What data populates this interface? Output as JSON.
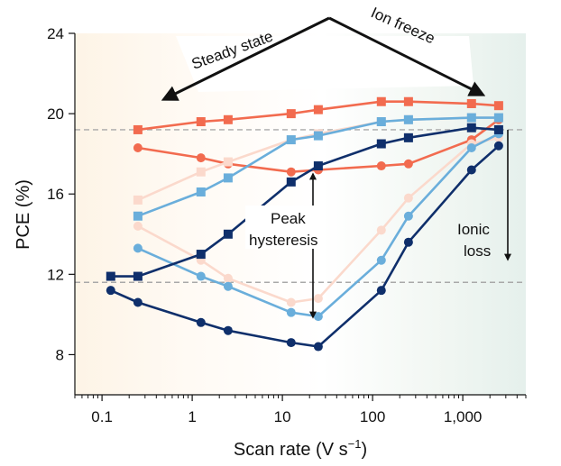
{
  "chart_data": {
    "type": "line",
    "xscale": "log",
    "xlim": [
      0.05,
      5000
    ],
    "ylim": [
      6,
      24
    ],
    "xlabel": "Scan rate (V s",
    "xlabel_sup": "−1",
    "xlabel_end": ")",
    "ylabel": "PCE (%)",
    "xticks": [
      0.1,
      1,
      10,
      100,
      1000
    ],
    "xtick_labels": [
      "0.1",
      "1",
      "10",
      "100",
      "1,000"
    ],
    "yticks": [
      8,
      12,
      16,
      20,
      24
    ],
    "ytick_labels": [
      "8",
      "12",
      "16",
      "20",
      "24"
    ],
    "reference_lines": [
      19.2,
      11.6
    ],
    "annotations": {
      "steady_state": "Steady state",
      "ion_freeze": "Ion freeze",
      "peak_line1": "Peak",
      "peak_line2": "hysteresis",
      "ionic_line1": "Ionic",
      "ionic_line2": "loss"
    },
    "series": [
      {
        "color": "#f26b4f",
        "marker": "square",
        "x": [
          0.25,
          1.25,
          2.5,
          12.5,
          25,
          125,
          250,
          1250,
          2500
        ],
        "y": [
          19.2,
          19.6,
          19.7,
          20.0,
          20.2,
          20.6,
          20.6,
          20.5,
          20.4
        ]
      },
      {
        "color": "#f26b4f",
        "marker": "circle",
        "x": [
          0.25,
          1.25,
          2.5,
          12.5,
          25,
          125,
          250,
          1250,
          2500
        ],
        "y": [
          18.3,
          17.8,
          17.5,
          17.1,
          17.2,
          17.4,
          17.5,
          18.7,
          19.7
        ]
      },
      {
        "color": "#fbd9cc",
        "marker": "square",
        "x": [
          0.25,
          1.25,
          2.5,
          12.5,
          25,
          125,
          250,
          1250,
          2500
        ],
        "y": [
          15.7,
          17.1,
          17.6,
          18.7,
          19.0,
          19.6,
          19.7,
          19.8,
          19.8
        ]
      },
      {
        "color": "#fbd9cc",
        "marker": "circle",
        "x": [
          0.25,
          1.25,
          2.5,
          12.5,
          25,
          125,
          250,
          1250,
          2500
        ],
        "y": [
          14.4,
          12.7,
          11.8,
          10.6,
          10.8,
          14.2,
          15.8,
          18.5,
          18.8
        ]
      },
      {
        "color": "#6aaedb",
        "marker": "square",
        "x": [
          0.25,
          1.25,
          2.5,
          12.5,
          25,
          125,
          250,
          1250,
          2500
        ],
        "y": [
          14.9,
          16.1,
          16.8,
          18.7,
          18.9,
          19.6,
          19.7,
          19.8,
          19.8
        ]
      },
      {
        "color": "#6aaedb",
        "marker": "circle",
        "x": [
          0.25,
          1.25,
          2.5,
          12.5,
          25,
          125,
          250,
          1250,
          2500
        ],
        "y": [
          13.3,
          11.9,
          11.4,
          10.1,
          9.9,
          12.7,
          14.9,
          18.3,
          19.0
        ]
      },
      {
        "color": "#0f2f6b",
        "marker": "square",
        "x": [
          0.125,
          0.25,
          1.25,
          2.5,
          12.5,
          25,
          125,
          250,
          1250,
          2500
        ],
        "y": [
          11.9,
          11.9,
          13.0,
          14.0,
          16.6,
          17.4,
          18.5,
          18.8,
          19.3,
          19.2
        ]
      },
      {
        "color": "#0f2f6b",
        "marker": "circle",
        "x": [
          0.125,
          0.25,
          1.25,
          2.5,
          12.5,
          25,
          125,
          250,
          1250,
          2500
        ],
        "y": [
          11.2,
          10.6,
          9.6,
          9.2,
          8.6,
          8.4,
          11.2,
          13.6,
          17.2,
          18.4
        ]
      }
    ]
  }
}
